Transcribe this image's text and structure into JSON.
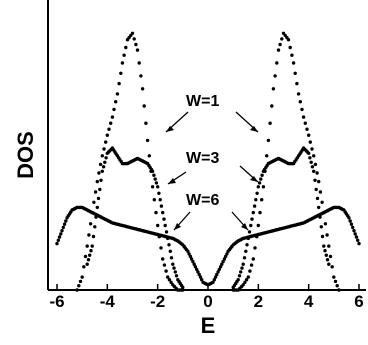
{
  "chart_data": {
    "type": "scatter",
    "xlabel": "E",
    "ylabel": "DOS",
    "xlim": [
      -6,
      6
    ],
    "ylim": [
      0,
      1
    ],
    "xticks": [
      -6,
      -4,
      -2,
      0,
      2,
      4,
      6
    ],
    "grid": false,
    "series": [
      {
        "annotation": "W=1",
        "x": [
          -5.2,
          -5.0,
          -4.8,
          -4.6,
          -4.4,
          -4.2,
          -4.0,
          -3.8,
          -3.6,
          -3.4,
          -3.2,
          -3.0,
          -2.8,
          -2.6,
          -2.4,
          -2.2,
          -2.0,
          -1.8,
          -1.6,
          -1.4,
          -1.2,
          -1.0
        ],
        "y": [
          0.0,
          0.05,
          0.17,
          0.3,
          0.42,
          0.52,
          0.6,
          0.67,
          0.76,
          0.88,
          0.97,
          0.995,
          0.93,
          0.78,
          0.58,
          0.4,
          0.25,
          0.12,
          0.05,
          0.02,
          0.0,
          0.0
        ]
      },
      {
        "annotation": "W=3",
        "x": [
          -4.8,
          -4.6,
          -4.4,
          -4.2,
          -4.0,
          -3.8,
          -3.6,
          -3.4,
          -3.2,
          -3.0,
          -2.8,
          -2.6,
          -2.4,
          -2.2,
          -2.0,
          -1.8,
          -1.6,
          -1.4,
          -1.2,
          -1.0
        ],
        "y": [
          0.1,
          0.17,
          0.32,
          0.46,
          0.53,
          0.55,
          0.52,
          0.49,
          0.49,
          0.5,
          0.51,
          0.5,
          0.49,
          0.46,
          0.4,
          0.3,
          0.2,
          0.1,
          0.04,
          0.01
        ]
      },
      {
        "annotation": "W=6",
        "x": [
          -6.0,
          -5.8,
          -5.6,
          -5.4,
          -5.2,
          -5.0,
          -4.8,
          -4.6,
          -4.4,
          -4.2,
          -4.0,
          -3.8,
          -3.6,
          -3.4,
          -3.2,
          -3.0,
          -2.8,
          -2.6,
          -2.4,
          -2.2,
          -2.0,
          -1.8,
          -1.6,
          -1.4,
          -1.2,
          -1.0,
          -0.8,
          -0.6,
          -0.4,
          -0.2,
          0.0
        ],
        "y": [
          0.18,
          0.23,
          0.28,
          0.31,
          0.32,
          0.32,
          0.31,
          0.3,
          0.29,
          0.28,
          0.27,
          0.26,
          0.255,
          0.25,
          0.245,
          0.24,
          0.235,
          0.23,
          0.225,
          0.22,
          0.215,
          0.21,
          0.205,
          0.2,
          0.19,
          0.175,
          0.15,
          0.11,
          0.07,
          0.03,
          0.02
        ]
      }
    ],
    "symmetric_about_zero": true,
    "annotations": [
      "W=1",
      "W=3",
      "W=6"
    ]
  }
}
